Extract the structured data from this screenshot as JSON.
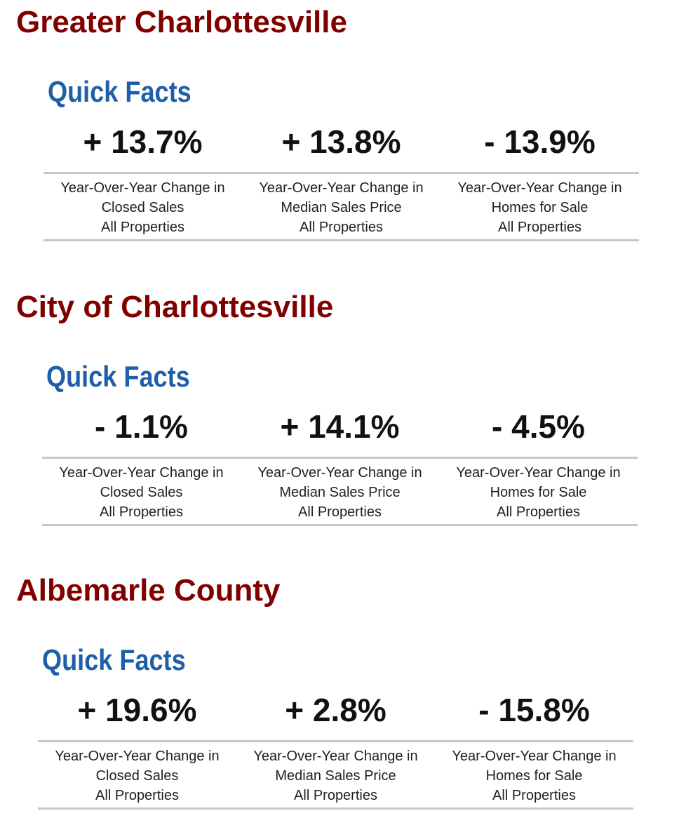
{
  "sections": [
    {
      "region": "Greater Charlottesville",
      "quick_facts": "Quick Facts",
      "stats": [
        {
          "value": "+ 13.7%",
          "line1": "Year-Over-Year Change in",
          "line2": "Closed Sales",
          "line3": "All Properties"
        },
        {
          "value": "+ 13.8%",
          "line1": "Year-Over-Year Change in",
          "line2": "Median Sales Price",
          "line3": "All Properties"
        },
        {
          "value": "- 13.9%",
          "line1": "Year-Over-Year Change in",
          "line2": "Homes for Sale",
          "line3": "All Properties"
        }
      ]
    },
    {
      "region": "City of Charlottesville",
      "quick_facts": "Quick Facts",
      "stats": [
        {
          "value": "- 1.1%",
          "line1": "Year-Over-Year Change in",
          "line2": "Closed Sales",
          "line3": "All Properties"
        },
        {
          "value": "+ 14.1%",
          "line1": "Year-Over-Year Change in",
          "line2": "Median Sales Price",
          "line3": "All Properties"
        },
        {
          "value": "- 4.5%",
          "line1": "Year-Over-Year Change in",
          "line2": "Homes for Sale",
          "line3": "All Properties"
        }
      ]
    },
    {
      "region": "Albemarle County",
      "quick_facts": "Quick Facts",
      "stats": [
        {
          "value": "+ 19.6%",
          "line1": "Year-Over-Year Change in",
          "line2": "Closed Sales",
          "line3": "All Properties"
        },
        {
          "value": "+ 2.8%",
          "line1": "Year-Over-Year Change in",
          "line2": "Median Sales Price",
          "line3": "All Properties"
        },
        {
          "value": "- 15.8%",
          "line1": "Year-Over-Year Change in",
          "line2": "Homes for Sale",
          "line3": "All Properties"
        }
      ]
    }
  ],
  "colors": {
    "region_title": "#800000",
    "quick_facts": "#1f5fa8",
    "rule": "#c7c7c7"
  }
}
